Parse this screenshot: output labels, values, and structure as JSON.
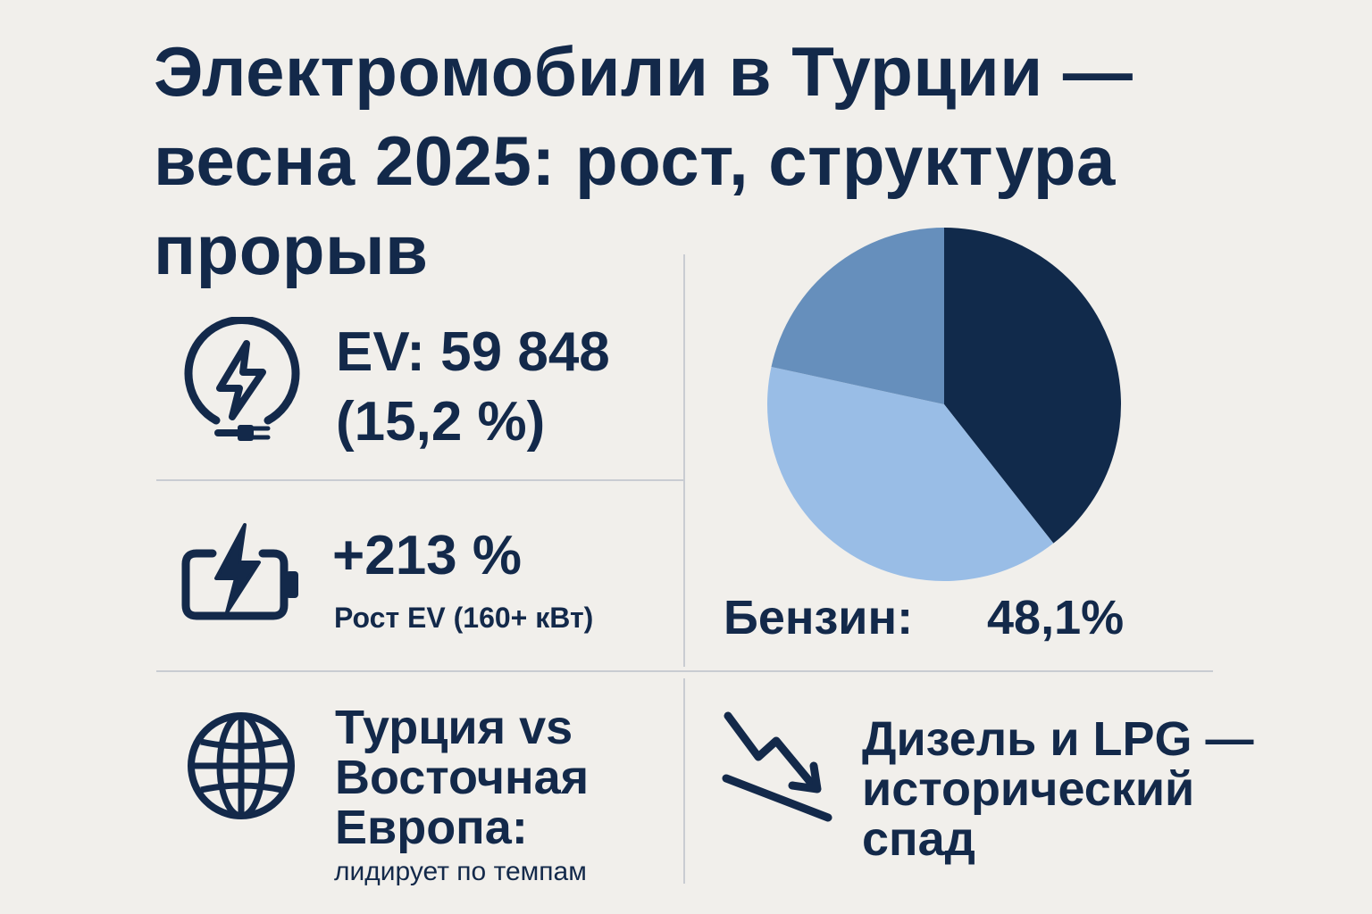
{
  "title": {
    "line1": "Электромобили в Турции —",
    "line2": "весна 2025: рост, структура",
    "line3": "прорыв"
  },
  "stats": {
    "ev_count_line1": "EV: 59 848",
    "ev_count_line2": "(15,2 %)",
    "growth_value": "+213 %",
    "growth_caption": "Рост EV (160+ кВт)",
    "compare_line1": "Турция vs",
    "compare_line2": "Восточная",
    "compare_line3": "Европа:",
    "compare_caption": "лидирует по темпам",
    "diesel_line1": "Дизель и LPG —",
    "diesel_line2": "исторический",
    "diesel_line3": "спад"
  },
  "pie": {
    "label": "Бензин:",
    "value": "48,1%"
  },
  "chart_data": {
    "type": "pie",
    "slices": [
      {
        "share": 0.394,
        "color": "#112a4b"
      },
      {
        "share": 0.39,
        "color": "#99bde6"
      },
      {
        "share": 0.216,
        "color": "#668fbc"
      }
    ]
  },
  "icons": [
    "charger-plug-icon",
    "battery-bolt-icon",
    "globe-icon",
    "trend-down-icon"
  ]
}
